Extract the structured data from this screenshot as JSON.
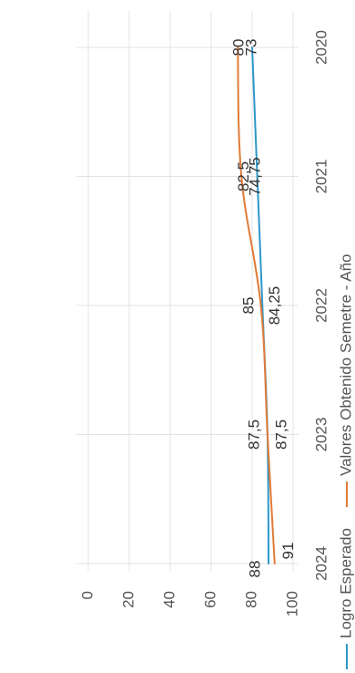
{
  "chart_data": {
    "type": "line",
    "orientation": "rotated-90",
    "x": [
      "2020",
      "2021",
      "2022",
      "2023",
      "2024"
    ],
    "series": [
      {
        "name": "Logro Esperado",
        "color": "#2e97c8",
        "values": [
          80,
          82.5,
          85,
          87.5,
          88
        ],
        "labels": [
          "80",
          "82,5",
          "85",
          "87,5",
          "88"
        ]
      },
      {
        "name": "Valores Obtenido Semetre - Año",
        "color": "#e07b39",
        "values": [
          73,
          74.75,
          84.25,
          87.5,
          91
        ],
        "labels": [
          "73",
          "74,75",
          "84,25",
          "87,5",
          "91"
        ]
      }
    ],
    "y_ticks": [
      "0",
      "20",
      "40",
      "60",
      "80",
      "100"
    ],
    "ylim": [
      0,
      100
    ],
    "grid": true,
    "legend_position": "bottom"
  }
}
